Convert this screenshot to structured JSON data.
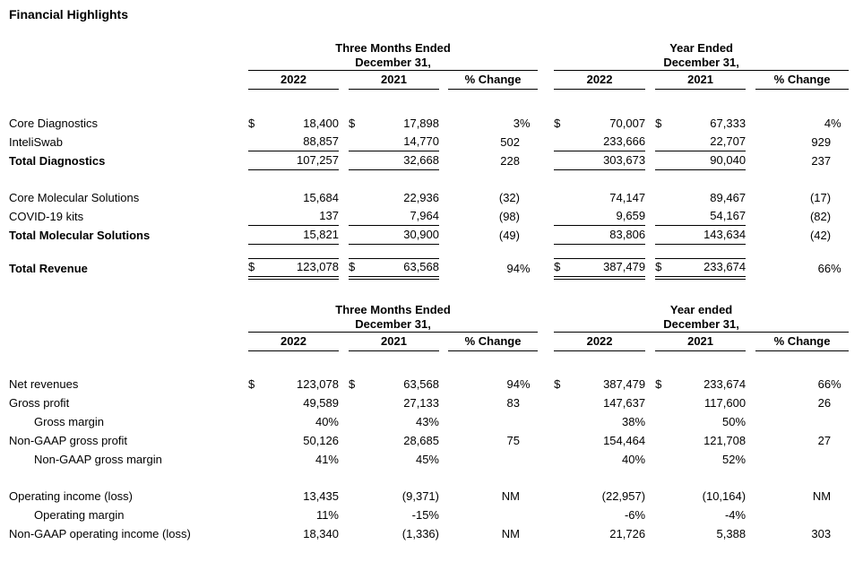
{
  "title": "Financial Highlights",
  "tables": [
    {
      "name": "revenue-by-segment",
      "groups": [
        {
          "line1": "Three Months Ended",
          "line2": "December 31,"
        },
        {
          "line1": "Year Ended",
          "line2": "December 31,"
        }
      ],
      "columns": [
        "2022",
        "2021",
        "% Change"
      ],
      "rows": [
        {
          "label": "Core Diagnostics",
          "style": "plain",
          "tm": [
            "$",
            "18,400",
            "$",
            "17,898",
            "3",
            "%"
          ],
          "yr": [
            "$",
            "70,007",
            "$",
            "67,333",
            "4",
            "%"
          ]
        },
        {
          "label": "InteliSwab",
          "style": "underline",
          "tm": [
            "",
            "88,857",
            "",
            "14,770",
            "502",
            ""
          ],
          "yr": [
            "",
            "233,666",
            "",
            "22,707",
            "929",
            ""
          ]
        },
        {
          "label": "Total Diagnostics",
          "bold": true,
          "style": "underline",
          "tm": [
            "",
            "107,257",
            "",
            "32,668",
            "228",
            ""
          ],
          "yr": [
            "",
            "303,673",
            "",
            "90,040",
            "237",
            ""
          ]
        },
        {
          "spacer": true,
          "height": 20
        },
        {
          "label": "Core Molecular Solutions",
          "style": "plain",
          "tm": [
            "",
            "15,684",
            "",
            "22,936",
            "(32)",
            ""
          ],
          "yr": [
            "",
            "74,147",
            "",
            "89,467",
            "(17)",
            ""
          ]
        },
        {
          "label": "COVID-19 kits",
          "style": "underline",
          "tm": [
            "",
            "137",
            "",
            "7,964",
            "(98)",
            ""
          ],
          "yr": [
            "",
            "9,659",
            "",
            "54,167",
            "(82)",
            ""
          ]
        },
        {
          "label": "Total Molecular Solutions",
          "bold": true,
          "style": "underline",
          "tm": [
            "",
            "15,821",
            "",
            "30,900",
            "(49)",
            ""
          ],
          "yr": [
            "",
            "83,806",
            "",
            "143,634",
            "(42)",
            ""
          ]
        },
        {
          "spacer": true,
          "height": 16
        },
        {
          "label": "Total Revenue",
          "bold": true,
          "style": "total",
          "tm": [
            "$",
            "123,078",
            "$",
            "63,568",
            "94",
            "%"
          ],
          "yr": [
            "$",
            "387,479",
            "$",
            "233,674",
            "66",
            "%"
          ]
        }
      ]
    },
    {
      "name": "profitability",
      "groups": [
        {
          "line1": "Three Months Ended",
          "line2": "December 31,"
        },
        {
          "line1": "Year ended",
          "line2": "December 31,"
        }
      ],
      "columns": [
        "2022",
        "2021",
        "% Change"
      ],
      "rows": [
        {
          "label": "Net revenues",
          "style": "plain",
          "tm": [
            "$",
            "123,078",
            "$",
            "63,568",
            "94",
            "%"
          ],
          "yr": [
            "$",
            "387,479",
            "$",
            "233,674",
            "66",
            "%"
          ]
        },
        {
          "label": "Gross profit",
          "style": "plain",
          "tm": [
            "",
            "49,589",
            "",
            "27,133",
            "83",
            ""
          ],
          "yr": [
            "",
            "147,637",
            "",
            "117,600",
            "26",
            ""
          ]
        },
        {
          "label": "Gross margin",
          "indent": true,
          "style": "plain",
          "tm": [
            "",
            "40%",
            "",
            "43%",
            "",
            ""
          ],
          "yr": [
            "",
            "38%",
            "",
            "50%",
            "",
            ""
          ]
        },
        {
          "label": "Non-GAAP gross profit",
          "style": "plain",
          "tm": [
            "",
            "50,126",
            "",
            "28,685",
            "75",
            ""
          ],
          "yr": [
            "",
            "154,464",
            "",
            "121,708",
            "27",
            ""
          ]
        },
        {
          "label": "Non-GAAP gross margin",
          "indent": true,
          "style": "plain",
          "tm": [
            "",
            "41%",
            "",
            "45%",
            "",
            ""
          ],
          "yr": [
            "",
            "40%",
            "",
            "52%",
            "",
            ""
          ]
        },
        {
          "spacer": true,
          "height": 20
        },
        {
          "label": "Operating income (loss)",
          "style": "plain",
          "tm": [
            "",
            "13,435",
            "",
            "(9,371)",
            "NM",
            ""
          ],
          "yr": [
            "",
            "(22,957)",
            "",
            "(10,164)",
            "NM",
            ""
          ]
        },
        {
          "label": "Operating margin",
          "indent": true,
          "style": "plain",
          "tm": [
            "",
            "11%",
            "",
            "-15%",
            "",
            ""
          ],
          "yr": [
            "",
            "-6%",
            "",
            "-4%",
            "",
            ""
          ]
        },
        {
          "label": "Non-GAAP operating income (loss)",
          "style": "plain",
          "tm": [
            "",
            "18,340",
            "",
            "(1,336)",
            "NM",
            ""
          ],
          "yr": [
            "",
            "21,726",
            "",
            "5,388",
            "303",
            ""
          ]
        }
      ]
    }
  ]
}
